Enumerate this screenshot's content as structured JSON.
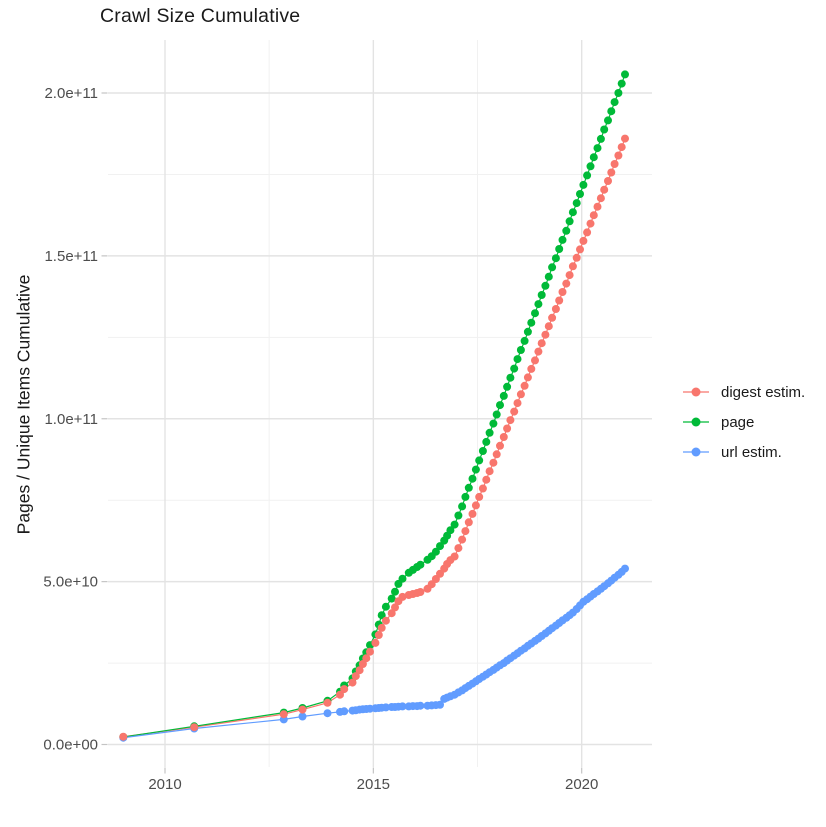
{
  "title": "Crawl Size Cumulative",
  "axes": {
    "y_label": "Pages / Unique Items Cumulative",
    "y_tick_labels": [
      "0.0e+00",
      "5.0e+10",
      "1.0e+11",
      "1.5e+11",
      "2.0e+11"
    ],
    "x_tick_labels": [
      "2010",
      "2015",
      "2020"
    ]
  },
  "legend": {
    "items": [
      {
        "label": "digest estim.",
        "color": "#F8766D"
      },
      {
        "label": "page",
        "color": "#00BA38"
      },
      {
        "label": "url estim.",
        "color": "#619CFF"
      }
    ]
  },
  "style": {
    "grid_major": "#E3E3E3",
    "grid_minor": "#F1F1F1",
    "tick_mark": "#C4C4C4",
    "tick_text": "#4D4D4D",
    "title_text": "#1A1A1A",
    "background": "#FFFFFF"
  },
  "chart_data": {
    "type": "scatter",
    "title": "Crawl Size Cumulative",
    "xlabel": "",
    "ylabel": "Pages / Unique Items Cumulative",
    "xlim": [
      2008.7,
      2021.7
    ],
    "ylim_e9": [
      -7,
      216
    ],
    "x_ticks": [
      2010,
      2015,
      2020
    ],
    "x_minor_ticks": [
      2012.5,
      2017.5
    ],
    "y_tick_values_e9": [
      0,
      50,
      100,
      150,
      200
    ],
    "y_minor_values_e9": [
      25,
      75,
      125,
      175
    ],
    "grid": true,
    "legend_position": "right",
    "value_unit": "items, stored as multiples of 1e9",
    "x_years": [
      2009.0,
      2010.7,
      2012.85,
      2013.3,
      2013.9,
      2014.2,
      2014.3,
      2014.5,
      2014.58,
      2014.67,
      2014.75,
      2014.83,
      2014.92,
      2015.05,
      2015.13,
      2015.2,
      2015.3,
      2015.44,
      2015.52,
      2015.6,
      2015.7,
      2015.85,
      2015.95,
      2016.05,
      2016.13,
      2016.3,
      2016.4,
      2016.5,
      2016.6,
      2016.7,
      2016.77,
      2016.85,
      2016.95,
      2017.04,
      2017.13,
      2017.21,
      2017.29,
      2017.38,
      2017.46,
      2017.54,
      2017.63,
      2017.71,
      2017.79,
      2017.88,
      2017.96,
      2018.04,
      2018.13,
      2018.21,
      2018.29,
      2018.38,
      2018.46,
      2018.54,
      2018.63,
      2018.71,
      2018.79,
      2018.88,
      2018.96,
      2019.04,
      2019.13,
      2019.21,
      2019.29,
      2019.38,
      2019.46,
      2019.54,
      2019.63,
      2019.71,
      2019.79,
      2019.88,
      2019.96,
      2020.04,
      2020.13,
      2020.21,
      2020.29,
      2020.38,
      2020.46,
      2020.54,
      2020.63,
      2020.71,
      2020.79,
      2020.88,
      2020.96,
      2021.04
    ],
    "series": [
      {
        "name": "digest estim.",
        "color": "#F8766D",
        "values_e9": [
          2.4,
          5.3,
          9.3,
          10.7,
          12.8,
          15.3,
          17.0,
          19.0,
          21.0,
          22.8,
          24.7,
          26.5,
          28.5,
          31.2,
          33.6,
          35.8,
          38.0,
          40.3,
          42.1,
          44.0,
          45.3,
          45.9,
          46.2,
          46.5,
          46.8,
          47.8,
          49.2,
          50.8,
          52.4,
          54.0,
          55.4,
          56.6,
          57.7,
          60.3,
          62.9,
          65.5,
          68.2,
          70.8,
          73.4,
          76.0,
          78.6,
          81.3,
          83.9,
          86.5,
          89.1,
          91.7,
          94.4,
          97.0,
          99.6,
          102.2,
          104.8,
          107.5,
          110.1,
          112.7,
          115.3,
          117.9,
          120.6,
          123.2,
          125.8,
          128.4,
          131.0,
          133.7,
          136.3,
          138.9,
          141.5,
          144.1,
          146.8,
          149.4,
          152.0,
          154.6,
          157.2,
          159.9,
          162.5,
          165.1,
          167.7,
          170.3,
          173.0,
          175.6,
          178.2,
          180.8,
          183.4,
          186.0
        ]
      },
      {
        "name": "page",
        "color": "#00BA38",
        "values_e9": [
          2.3,
          5.6,
          9.8,
          11.2,
          13.4,
          16.2,
          18.1,
          20.3,
          22.4,
          24.3,
          26.4,
          28.3,
          30.5,
          33.8,
          36.8,
          39.7,
          42.3,
          44.8,
          46.9,
          49.3,
          50.9,
          52.7,
          53.6,
          54.5,
          55.2,
          56.7,
          57.8,
          59.2,
          60.9,
          62.6,
          64.1,
          65.8,
          67.5,
          70.3,
          73.1,
          76.0,
          78.8,
          81.6,
          84.4,
          87.2,
          90.1,
          92.9,
          95.7,
          98.5,
          101.3,
          104.2,
          107.0,
          109.8,
          112.6,
          115.4,
          118.3,
          121.1,
          123.9,
          126.7,
          129.5,
          132.4,
          135.2,
          138.0,
          140.8,
          143.6,
          146.5,
          149.3,
          152.1,
          154.9,
          157.7,
          160.6,
          163.4,
          166.2,
          169.0,
          171.8,
          174.7,
          177.5,
          180.3,
          183.1,
          185.9,
          188.8,
          191.6,
          194.4,
          197.2,
          200.0,
          202.9,
          205.7
        ]
      },
      {
        "name": "url estim.",
        "color": "#619CFF",
        "values_e9": [
          2.1,
          4.9,
          7.7,
          8.6,
          9.6,
          10.0,
          10.2,
          10.4,
          10.5,
          10.7,
          10.8,
          10.9,
          11.0,
          11.1,
          11.2,
          11.3,
          11.4,
          11.5,
          11.5,
          11.6,
          11.7,
          11.7,
          11.8,
          11.8,
          11.9,
          11.9,
          12.0,
          12.1,
          12.2,
          14.0,
          14.4,
          14.8,
          15.3,
          16.0,
          16.6,
          17.3,
          18.0,
          18.7,
          19.4,
          20.1,
          20.8,
          21.5,
          22.2,
          22.9,
          23.6,
          24.3,
          25.0,
          25.8,
          26.5,
          27.3,
          28.0,
          28.8,
          29.5,
          30.3,
          31.0,
          31.8,
          32.5,
          33.3,
          34.1,
          34.9,
          35.7,
          36.5,
          37.3,
          38.1,
          38.9,
          39.7,
          40.5,
          41.6,
          42.7,
          43.8,
          44.6,
          45.4,
          46.2,
          47.0,
          47.8,
          48.6,
          49.5,
          50.3,
          51.2,
          52.1,
          53.0,
          54.0
        ]
      }
    ]
  }
}
